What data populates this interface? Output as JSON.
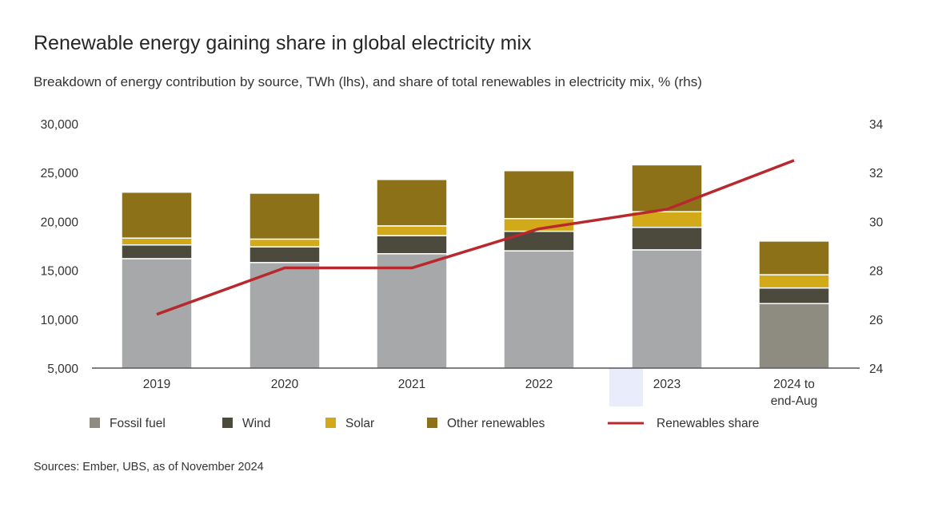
{
  "title": "Renewable energy gaining share in global electricity mix",
  "subtitle": "Breakdown of energy contribution by source, TWh (lhs), and share of total renewables in electricity mix, % (rhs)",
  "source": "Sources: Ember, UBS, as of November 2024",
  "colors": {
    "fossil": "#a7a8aa",
    "fossil_partial": "#8e8c80",
    "wind": "#4b4a3c",
    "solar": "#d2a919",
    "other": "#8c7118",
    "line": "#b8282d",
    "highlight": "#e9ecfb"
  },
  "chart_data": {
    "type": "bar",
    "stacked": true,
    "categories": [
      "2019",
      "2020",
      "2021",
      "2022",
      "2023",
      "2024 to end-Aug"
    ],
    "series": [
      {
        "name": "Fossil fuel",
        "values": [
          16200,
          15800,
          16700,
          17000,
          17100,
          11600
        ]
      },
      {
        "name": "Wind",
        "values": [
          1400,
          1600,
          1850,
          2000,
          2300,
          1600
        ]
      },
      {
        "name": "Solar",
        "values": [
          700,
          800,
          1000,
          1300,
          1600,
          1350
        ]
      },
      {
        "name": "Other renewables",
        "values": [
          4700,
          4700,
          4750,
          4900,
          4800,
          3450
        ]
      }
    ],
    "line_series": {
      "name": "Renewables share",
      "axis": "right",
      "values": [
        26.2,
        28.1,
        28.1,
        29.7,
        30.5,
        32.5
      ]
    },
    "y_left": {
      "min": 5000,
      "max": 30000,
      "ticks": [
        "5,000",
        "10,000",
        "15,000",
        "20,000",
        "25,000",
        "30,000"
      ]
    },
    "y_right": {
      "min": 24,
      "max": 34,
      "ticks": [
        "24",
        "26",
        "28",
        "30",
        "32",
        "34"
      ]
    },
    "legend_position": "bottom",
    "highlight_category": "2023"
  }
}
